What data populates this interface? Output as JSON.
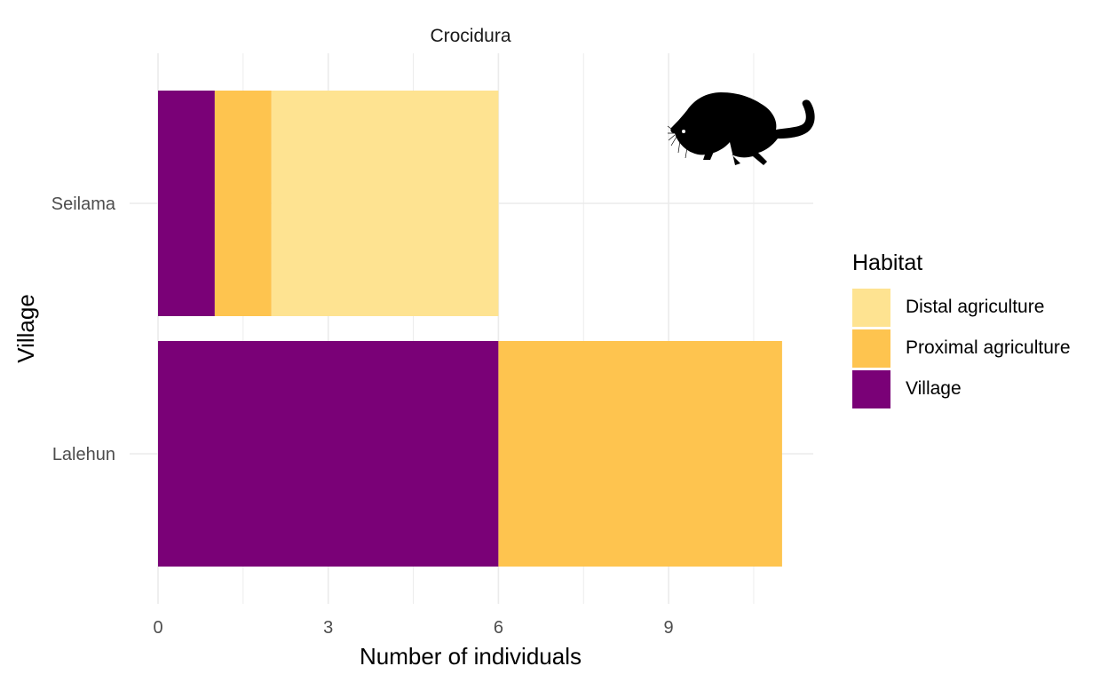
{
  "chart_data": {
    "type": "bar",
    "orientation": "horizontal",
    "stacked": true,
    "title": "Crocidura",
    "xlabel": "Number of individuals",
    "ylabel": "Village",
    "categories": [
      "Lalehun",
      "Seilama"
    ],
    "series": [
      {
        "name": "Village",
        "color": "#7a0177",
        "values": [
          6,
          1
        ]
      },
      {
        "name": "Proximal agriculture",
        "color": "#fec44f",
        "values": [
          5,
          1
        ]
      },
      {
        "name": "Distal agriculture",
        "color": "#fee391",
        "values": [
          0,
          4
        ]
      }
    ],
    "xticks": [
      "0",
      "3",
      "6",
      "9"
    ],
    "xlim": [
      0,
      11.55
    ],
    "grid": true,
    "legend_title": "Habitat",
    "legend_order": [
      "Distal agriculture",
      "Proximal agriculture",
      "Village"
    ],
    "legend_position": "right",
    "silhouette": "shrew-icon"
  }
}
